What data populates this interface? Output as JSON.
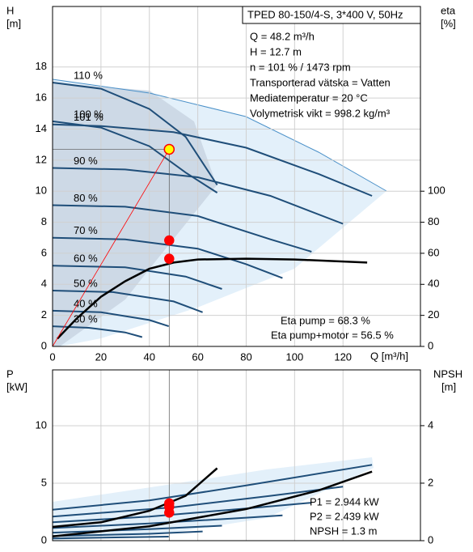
{
  "chart_data": [
    {
      "type": "line",
      "title": "TPED 80-150/4-S, 3*400 V, 50Hz",
      "info": [
        "Q = 48.2 m³/h",
        "H = 12.7 m",
        "n = 101 % / 1473 rpm",
        "Transporterad vätska = Vatten",
        "Mediatemperatur = 20 °C",
        "Volymetrisk vikt = 998.2 kg/m³"
      ],
      "annotations": [
        "Eta pump = 68.3 %",
        "Eta pump+motor = 56.5 %"
      ],
      "xlabel": "Q [m³/h]",
      "ylabel": [
        "H",
        "[m]"
      ],
      "y2label": [
        "eta",
        "[%]"
      ],
      "xlim": [
        0,
        152
      ],
      "xticks": [
        0,
        20,
        40,
        60,
        80,
        100,
        120
      ],
      "ylim": [
        0,
        21.9
      ],
      "yticks": [
        0,
        2,
        4,
        6,
        8,
        10,
        12,
        14,
        16,
        18
      ],
      "y2lim": [
        0,
        219
      ],
      "y2ticks": [
        0,
        20,
        40,
        60,
        80,
        100
      ],
      "grid": true,
      "series": [
        {
          "name": "110 %",
          "color": "#1f4e79",
          "x": [
            0,
            20,
            40,
            55,
            68
          ],
          "values": [
            17,
            16.6,
            15.3,
            13.5,
            10.4
          ]
        },
        {
          "name": "100 %",
          "color": "#1f4e79",
          "x": [
            0,
            20,
            40,
            55,
            68
          ],
          "values": [
            14.5,
            14.1,
            12.9,
            11.2,
            9.9
          ]
        },
        {
          "name": "101 %",
          "color": "#1f4e79",
          "x": [
            0,
            20,
            50,
            80,
            110,
            132
          ],
          "values": [
            14.3,
            14.2,
            13.8,
            12.8,
            11.1,
            9.7
          ]
        },
        {
          "name": "90 %",
          "color": "#1f4e79",
          "x": [
            0,
            30,
            60,
            90,
            120
          ],
          "values": [
            11.5,
            11.4,
            10.9,
            9.7,
            7.9
          ]
        },
        {
          "name": "80 %",
          "color": "#1f4e79",
          "x": [
            0,
            30,
            60,
            90,
            107
          ],
          "values": [
            9.1,
            9,
            8.4,
            6.9,
            6.1
          ]
        },
        {
          "name": "70 %",
          "color": "#1f4e79",
          "x": [
            0,
            30,
            60,
            80,
            95
          ],
          "values": [
            7,
            6.9,
            6.3,
            5.3,
            4.4
          ]
        },
        {
          "name": "60 %",
          "color": "#1f4e79",
          "x": [
            0,
            30,
            55,
            70
          ],
          "values": [
            5.2,
            5.1,
            4.5,
            3.7
          ]
        },
        {
          "name": "50 %",
          "color": "#1f4e79",
          "x": [
            0,
            25,
            50,
            62
          ],
          "values": [
            3.6,
            3.5,
            2.9,
            2.2
          ]
        },
        {
          "name": "40 %",
          "color": "#1f4e79",
          "x": [
            0,
            20,
            40,
            48
          ],
          "values": [
            2.3,
            2.2,
            1.7,
            1.3
          ]
        },
        {
          "name": "30 %",
          "color": "#1f4e79",
          "x": [
            0,
            15,
            30,
            37
          ],
          "values": [
            1.3,
            1.2,
            0.9,
            0.6
          ]
        },
        {
          "color": "#000000",
          "axis": "y2",
          "x": [
            2,
            10,
            20,
            30,
            40,
            50,
            60,
            80,
            100,
            130
          ],
          "values": [
            5,
            18,
            32,
            42,
            50,
            54,
            56,
            56.5,
            56,
            54
          ]
        }
      ],
      "points": [
        {
          "x": 48.2,
          "y": 12.7,
          "color": "#ffff00"
        },
        {
          "x": 48.2,
          "y": 68.3,
          "axis": "y2",
          "color": "#ff0000"
        },
        {
          "x": 48.2,
          "y": 56.5,
          "axis": "y2",
          "color": "#ff0000"
        }
      ]
    },
    {
      "type": "line",
      "annotations": [
        "P1 = 2.944 kW",
        "P2 = 2.439 kW",
        "NPSH = 1.3 m"
      ],
      "ylabel": [
        "P",
        "[kW]"
      ],
      "y2label": [
        "NPSH",
        "[m]"
      ],
      "xlim": [
        0,
        152
      ],
      "ylim": [
        0,
        14.86
      ],
      "yticks": [
        0,
        5,
        10
      ],
      "y2lim": [
        0,
        5.94
      ],
      "y2ticks": [
        0,
        2,
        4
      ],
      "grid": true,
      "series": [
        {
          "color": "#1f4e79",
          "x": [
            0,
            40,
            80,
            132
          ],
          "values": [
            2.7,
            3.5,
            4.8,
            6.6
          ]
        },
        {
          "color": "#1f4e79",
          "x": [
            0,
            50,
            90,
            120
          ],
          "values": [
            2.1,
            2.9,
            3.9,
            4.7
          ]
        },
        {
          "color": "#1f4e79",
          "x": [
            0,
            40,
            80,
            107
          ],
          "values": [
            1.6,
            2.1,
            2.8,
            3.3
          ]
        },
        {
          "color": "#1f4e79",
          "x": [
            0,
            40,
            80,
            95
          ],
          "values": [
            1.1,
            1.5,
            2,
            2.2
          ]
        },
        {
          "color": "#1f4e79",
          "x": [
            0,
            40,
            70
          ],
          "values": [
            0.7,
            1,
            1.3
          ]
        },
        {
          "color": "#1f4e79",
          "x": [
            0,
            40,
            62
          ],
          "values": [
            0.4,
            0.6,
            0.8
          ]
        },
        {
          "color": "#1f4e79",
          "x": [
            0,
            48
          ],
          "values": [
            0.2,
            0.35
          ]
        },
        {
          "color": "#000000",
          "x": [
            0,
            20,
            40,
            55,
            68
          ],
          "values": [
            1.2,
            1.6,
            2.6,
            3.9,
            6.3
          ]
        },
        {
          "color": "#000000",
          "axis": "y2",
          "x": [
            0,
            40,
            80,
            110,
            132
          ],
          "values": [
            0.15,
            0.5,
            1.1,
            1.75,
            2.4
          ]
        }
      ],
      "points": [
        {
          "x": 48.2,
          "y": 2.944,
          "color": "#ff0000"
        },
        {
          "x": 48.2,
          "y": 2.439,
          "color": "#ff0000"
        },
        {
          "x": 48.2,
          "y": 1.3,
          "axis": "y2",
          "color": "#ff0000"
        }
      ]
    }
  ]
}
